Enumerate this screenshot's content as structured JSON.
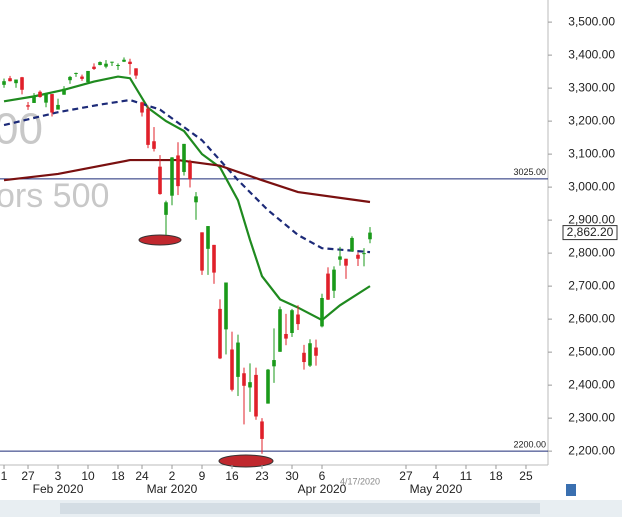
{
  "chart_data": {
    "type": "candlestick",
    "x": [
      0,
      1,
      2,
      3,
      4,
      5,
      6,
      7,
      8,
      9,
      10,
      11,
      12,
      13,
      14,
      15,
      16,
      17,
      18,
      19,
      20,
      21,
      22,
      23,
      24,
      25,
      26,
      27,
      28,
      29,
      30,
      31,
      32,
      33,
      34,
      35,
      36,
      37,
      38,
      39,
      40,
      41,
      42,
      43,
      44,
      45,
      46,
      47,
      48,
      49,
      50,
      51,
      52,
      53,
      54,
      55,
      56,
      57,
      58,
      59,
      60,
      61
    ],
    "open": [
      3310,
      3330,
      3315,
      3333,
      3248,
      3255,
      3289,
      3256,
      3282,
      3235,
      3280,
      3324,
      3344,
      3335,
      3318,
      3365,
      3370,
      3365,
      3378,
      3370,
      3380,
      3380,
      3360,
      3257,
      3238,
      3139,
      3062,
      2916,
      2974,
      3096,
      3046,
      3075,
      2954,
      2863,
      2813,
      2825,
      2631,
      2569,
      2508,
      2425,
      2436,
      2393,
      2431,
      2290,
      2344,
      2457,
      2501,
      2555,
      2558,
      2614,
      2498,
      2459,
      2514,
      2578,
      2738,
      2686,
      2780,
      2783,
      2805,
      2795,
      2800,
      2842
    ],
    "high": [
      3329,
      3337,
      3326,
      3334,
      3258,
      3285,
      3293,
      3286,
      3282,
      3268,
      3306,
      3337,
      3347,
      3341,
      3352,
      3375,
      3381,
      3385,
      3380,
      3375,
      3393,
      3389,
      3360,
      3259,
      3247,
      3182,
      3097,
      2959,
      3091,
      3136,
      3131,
      3083,
      2985,
      2863,
      2882,
      2825,
      2660,
      2711,
      2562,
      2553,
      2453,
      2466,
      2453,
      2300,
      2449,
      2572,
      2638,
      2616,
      2631,
      2642,
      2522,
      2539,
      2538,
      2677,
      2757,
      2760,
      2819,
      2783,
      2851,
      2802,
      2815,
      2879
    ],
    "low": [
      3301,
      3320,
      3301,
      3281,
      3234,
      3255,
      3271,
      3242,
      3214,
      3235,
      3280,
      3313,
      3334,
      3322,
      3317,
      3355,
      3369,
      3360,
      3367,
      3355,
      3379,
      3341,
      3328,
      3214,
      3118,
      3108,
      2977,
      2855,
      2945,
      2976,
      3035,
      2999,
      2901,
      2734,
      2734,
      2707,
      2479,
      2493,
      2381,
      2367,
      2281,
      2319,
      2295,
      2192,
      2344,
      2407,
      2501,
      2521,
      2546,
      2567,
      2447,
      2455,
      2459,
      2575,
      2658,
      2664,
      2762,
      2722,
      2805,
      2761,
      2760,
      2830
    ],
    "close": [
      3321,
      3321,
      3326,
      3295,
      3244,
      3276,
      3273,
      3284,
      3226,
      3249,
      3298,
      3334,
      3346,
      3328,
      3352,
      3358,
      3379,
      3374,
      3380,
      3370,
      3386,
      3373,
      3338,
      3226,
      3128,
      3116,
      2979,
      2954,
      3090,
      3003,
      3131,
      3024,
      2972,
      2747,
      2882,
      2741,
      2481,
      2711,
      2386,
      2529,
      2398,
      2409,
      2305,
      2237,
      2447,
      2476,
      2630,
      2541,
      2627,
      2585,
      2470,
      2527,
      2489,
      2664,
      2659,
      2750,
      2790,
      2762,
      2846,
      2783,
      2800,
      2862.2
    ],
    "up_color": "#1a9a1a",
    "down_color": "#e0202a",
    "series": [
      {
        "color": "#1f8a1f",
        "dash": false,
        "x": [
          0,
          5,
          10,
          15,
          19,
          21,
          24,
          27,
          30,
          33,
          36,
          39,
          41,
          43,
          46,
          49,
          53,
          56,
          61
        ],
        "values": [
          3260,
          3275,
          3295,
          3320,
          3335,
          3330,
          3240,
          3200,
          3170,
          3100,
          3060,
          2960,
          2840,
          2730,
          2660,
          2635,
          2597,
          2642,
          2700
        ]
      },
      {
        "color": "#1c2a78",
        "dash": true,
        "x": [
          0,
          9,
          16,
          21,
          26,
          33,
          39,
          44,
          49,
          53,
          61
        ],
        "values": [
          3188,
          3227,
          3250,
          3264,
          3235,
          3142,
          3021,
          2930,
          2855,
          2815,
          2803
        ]
      },
      {
        "color": "#7a1010",
        "dash": false,
        "x": [
          0,
          9,
          21,
          29,
          36,
          43,
          49,
          61
        ],
        "values": [
          3021,
          3040,
          3082,
          3082,
          3065,
          3021,
          2985,
          2955
        ]
      }
    ],
    "hlines": [
      {
        "value": 3025,
        "label": "3025.00"
      },
      {
        "value": 2200,
        "label": "2200.00"
      }
    ],
    "price_label": {
      "value": 2862.2,
      "label": "2,862.20"
    },
    "date_label": {
      "value": 61,
      "label": "4/17/2020"
    },
    "watermark": [
      "00",
      "ors 500"
    ],
    "xlim": [
      -0.67,
      90.67
    ],
    "ylim": [
      2158,
      3567
    ],
    "yticks": [
      {
        "value": 2200,
        "label": "2,200.00"
      },
      {
        "value": 2300,
        "label": "2,300.00"
      },
      {
        "value": 2400,
        "label": "2,400.00"
      },
      {
        "value": 2500,
        "label": "2,500.00"
      },
      {
        "value": 2600,
        "label": "2,600.00"
      },
      {
        "value": 2700,
        "label": "2,700.00"
      },
      {
        "value": 2800,
        "label": "2,800.00"
      },
      {
        "value": 2900,
        "label": "2,900.00"
      },
      {
        "value": 3000,
        "label": "3,000.00"
      },
      {
        "value": 3100,
        "label": "3,100.00"
      },
      {
        "value": 3200,
        "label": "3,200.00"
      },
      {
        "value": 3300,
        "label": "3,300.00"
      },
      {
        "value": 3400,
        "label": "3,400.00"
      },
      {
        "value": 3500,
        "label": "3,500.00"
      }
    ],
    "xticks": [
      {
        "value": 0,
        "label": "1"
      },
      {
        "value": 4,
        "label": "27"
      },
      {
        "value": 9,
        "label": "3"
      },
      {
        "value": 14,
        "label": "10"
      },
      {
        "value": 19,
        "label": "18"
      },
      {
        "value": 23,
        "label": "24"
      },
      {
        "value": 28,
        "label": "2"
      },
      {
        "value": 33,
        "label": "9"
      },
      {
        "value": 38,
        "label": "16"
      },
      {
        "value": 43,
        "label": "23"
      },
      {
        "value": 48,
        "label": "30"
      },
      {
        "value": 53,
        "label": "6"
      },
      {
        "value": 67,
        "label": "27"
      },
      {
        "value": 72,
        "label": "4"
      },
      {
        "value": 77,
        "label": "11"
      },
      {
        "value": 82,
        "label": "18"
      },
      {
        "value": 87,
        "label": "25"
      }
    ],
    "month_ticks": [
      {
        "value": 9,
        "label": "Feb 2020"
      },
      {
        "value": 28,
        "label": "Mar 2020"
      },
      {
        "value": 53,
        "label": "Apr 2020"
      },
      {
        "value": 72,
        "label": "May 2020"
      }
    ]
  }
}
